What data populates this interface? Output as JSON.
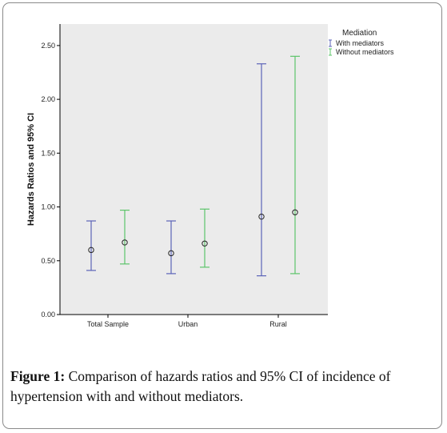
{
  "caption": {
    "label": "Figure 1:",
    "text": " Comparison of hazards ratios and 95% CI of incidence of hypertension with and without mediators."
  },
  "chart_data": {
    "type": "errorbar",
    "categories": [
      "Total Sample",
      "Urban",
      "Rural"
    ],
    "ylabel": "Hazards Ratios and 95% CI",
    "ylim": [
      0,
      2.7
    ],
    "yticks": [
      "0.00",
      "0.50",
      "1.00",
      "1.50",
      "2.00",
      "2.50"
    ],
    "ytick_values": [
      0,
      0.5,
      1.0,
      1.5,
      2.0,
      2.5
    ],
    "grid": false,
    "legend": {
      "title": "Mediation",
      "position": "top-right"
    },
    "background_color": "#ebebeb",
    "series": [
      {
        "name": "With mediators",
        "color": "#5b63b8",
        "estimate": [
          0.6,
          0.57,
          0.91
        ],
        "lower": [
          0.41,
          0.38,
          0.36
        ],
        "upper": [
          0.87,
          0.87,
          2.33
        ]
      },
      {
        "name": "Without mediators",
        "color": "#5cc46a",
        "estimate": [
          0.67,
          0.66,
          0.95
        ],
        "lower": [
          0.47,
          0.44,
          0.38
        ],
        "upper": [
          0.97,
          0.98,
          2.4
        ]
      }
    ]
  }
}
